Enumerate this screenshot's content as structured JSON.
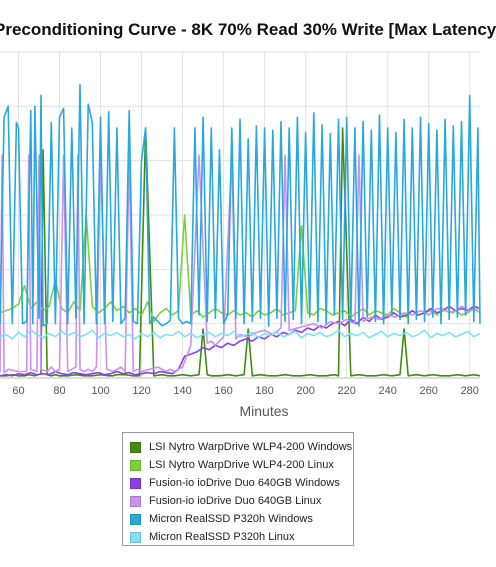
{
  "chart_data": {
    "type": "line",
    "title": "Preconditioning Curve - 8K 70% Read 30% Write [Max Latency",
    "xlabel": "Minutes",
    "ylabel": "",
    "x_ticks": [
      60,
      80,
      100,
      120,
      140,
      160,
      180,
      200,
      220,
      240,
      260,
      280
    ],
    "xlim": [
      51,
      285
    ],
    "ylim": [
      0,
      300
    ],
    "grid": true,
    "legend_position": "bottom",
    "series": [
      {
        "name": "LSI Nytro WarpDrive WLP4-200 Windows",
        "color": "#3f8c10",
        "x": [
          51,
          54,
          57,
          60,
          63,
          65,
          68,
          71,
          72,
          74,
          76,
          78,
          80,
          84,
          88,
          92,
          96,
          100,
          104,
          106,
          108,
          112,
          116,
          119,
          122,
          126,
          130,
          133,
          136,
          140,
          144,
          148,
          150,
          152,
          154,
          158,
          162,
          166,
          170,
          172,
          174,
          178,
          182,
          186,
          190,
          194,
          198,
          202,
          206,
          210,
          214,
          216,
          218,
          222,
          226,
          230,
          234,
          238,
          242,
          246,
          248,
          250,
          254,
          258,
          262,
          266,
          270,
          274,
          278,
          282,
          285
        ],
        "values": [
          2,
          2,
          3,
          2,
          2,
          3,
          2,
          4,
          210,
          3,
          2,
          3,
          2,
          2,
          3,
          2,
          2,
          3,
          2,
          2,
          3,
          3,
          2,
          2,
          230,
          2,
          3,
          2,
          2,
          3,
          2,
          3,
          45,
          3,
          2,
          2,
          3,
          2,
          3,
          45,
          2,
          3,
          2,
          2,
          3,
          2,
          2,
          3,
          2,
          2,
          3,
          2,
          230,
          2,
          3,
          2,
          2,
          3,
          2,
          3,
          45,
          2,
          3,
          2,
          3,
          2,
          2,
          3,
          2,
          3,
          2
        ]
      },
      {
        "name": "LSI Nytro WarpDrive WLP4-200 Linux",
        "color": "#7ad13a",
        "x": [
          51,
          54,
          57,
          60,
          63,
          66,
          69,
          72,
          75,
          78,
          81,
          84,
          87,
          90,
          93,
          96,
          99,
          102,
          105,
          108,
          111,
          114,
          117,
          120,
          123,
          126,
          129,
          132,
          135,
          138,
          141,
          144,
          147,
          150,
          153,
          156,
          159,
          162,
          165,
          168,
          171,
          174,
          177,
          180,
          183,
          186,
          189,
          192,
          195,
          198,
          201,
          204,
          207,
          210,
          213,
          216,
          219,
          222,
          225,
          228,
          231,
          234,
          237,
          240,
          243,
          246,
          249,
          252,
          255,
          258,
          261,
          264,
          267,
          270,
          273,
          276,
          279,
          282,
          285
        ],
        "values": [
          60,
          62,
          64,
          68,
          85,
          64,
          70,
          62,
          66,
          90,
          64,
          60,
          70,
          62,
          150,
          66,
          60,
          64,
          70,
          62,
          66,
          60,
          64,
          58,
          70,
          52,
          60,
          64,
          58,
          62,
          150,
          58,
          62,
          56,
          60,
          64,
          60,
          58,
          62,
          58,
          60,
          56,
          62,
          58,
          60,
          64,
          58,
          60,
          62,
          140,
          60,
          58,
          64,
          62,
          58,
          60,
          62,
          56,
          60,
          64,
          58,
          62,
          60,
          58,
          64,
          60,
          56,
          62,
          58,
          60,
          62,
          58,
          64,
          60,
          62,
          58,
          60,
          64,
          60
        ]
      },
      {
        "name": "Fusion-io ioDrive Duo 640GB Windows",
        "color": "#8a3fe0",
        "x": [
          51,
          54,
          57,
          60,
          63,
          66,
          69,
          72,
          75,
          78,
          81,
          84,
          87,
          90,
          93,
          96,
          99,
          102,
          105,
          108,
          111,
          114,
          117,
          120,
          123,
          126,
          129,
          132,
          135,
          138,
          141,
          144,
          147,
          150,
          153,
          156,
          159,
          162,
          165,
          168,
          171,
          174,
          177,
          180,
          183,
          186,
          189,
          192,
          195,
          198,
          201,
          204,
          207,
          210,
          213,
          216,
          219,
          222,
          225,
          228,
          231,
          234,
          237,
          240,
          243,
          246,
          249,
          252,
          255,
          258,
          261,
          264,
          267,
          270,
          273,
          276,
          279,
          282,
          285
        ],
        "values": [
          2,
          3,
          2,
          4,
          3,
          5,
          3,
          4,
          3,
          6,
          4,
          3,
          5,
          4,
          3,
          4,
          5,
          3,
          4,
          6,
          4,
          5,
          3,
          4,
          5,
          4,
          6,
          5,
          4,
          8,
          20,
          22,
          24,
          28,
          26,
          30,
          28,
          32,
          30,
          34,
          36,
          34,
          38,
          36,
          40,
          38,
          42,
          40,
          44,
          42,
          46,
          44,
          48,
          46,
          50,
          52,
          48,
          54,
          50,
          56,
          52,
          58,
          54,
          56,
          60,
          56,
          58,
          62,
          58,
          60,
          64,
          60,
          62,
          66,
          62,
          64,
          62,
          66,
          64
        ]
      },
      {
        "name": "Fusion-io ioDrive Duo 640GB Linux",
        "color": "#c891f2",
        "x": [
          51,
          52,
          53,
          55,
          60,
          64,
          65,
          66,
          69,
          70,
          71,
          74,
          76,
          78,
          80,
          82,
          84,
          86,
          88,
          89,
          90,
          92,
          94,
          96,
          98,
          100,
          103,
          106,
          108,
          110,
          112,
          114,
          116,
          118,
          120,
          124,
          128,
          132,
          134,
          136,
          140,
          144,
          148,
          152,
          154,
          156,
          160,
          164,
          166,
          168,
          172,
          176,
          180,
          184,
          188,
          190,
          192,
          196,
          200,
          204,
          208,
          212,
          216,
          220,
          224,
          226,
          228,
          232,
          236,
          240,
          244,
          248,
          252,
          256,
          260,
          264,
          268,
          272,
          276,
          280,
          285
        ],
        "values": [
          5,
          205,
          5,
          8,
          6,
          6,
          205,
          8,
          6,
          205,
          8,
          6,
          10,
          6,
          8,
          205,
          6,
          8,
          10,
          205,
          8,
          6,
          8,
          6,
          10,
          205,
          8,
          6,
          8,
          10,
          6,
          205,
          6,
          8,
          6,
          8,
          10,
          6,
          8,
          6,
          10,
          30,
          205,
          32,
          34,
          30,
          38,
          205,
          36,
          40,
          38,
          42,
          44,
          40,
          46,
          205,
          44,
          46,
          48,
          50,
          46,
          52,
          50,
          54,
          50,
          205,
          52,
          56,
          54,
          58,
          56,
          60,
          58,
          62,
          58,
          64,
          62,
          60,
          66,
          62,
          64
        ]
      },
      {
        "name": "Micron RealSSD P320h Windows",
        "color": "#28a8dc",
        "x": [
          51,
          53,
          55,
          57,
          59,
          60,
          62,
          64,
          66,
          67,
          68,
          70,
          71,
          72,
          74,
          76,
          78,
          80,
          82,
          84,
          86,
          88,
          90,
          92,
          94,
          96,
          98,
          100,
          102,
          104,
          106,
          108,
          110,
          112,
          114,
          116,
          118,
          120,
          122,
          124,
          126,
          128,
          130,
          132,
          134,
          136,
          138,
          140,
          142,
          144,
          146,
          148,
          150,
          152,
          154,
          156,
          158,
          160,
          162,
          164,
          166,
          168,
          170,
          172,
          174,
          176,
          178,
          180,
          182,
          184,
          186,
          188,
          190,
          192,
          194,
          196,
          198,
          200,
          202,
          204,
          206,
          208,
          210,
          212,
          214,
          216,
          218,
          220,
          222,
          224,
          226,
          228,
          230,
          232,
          234,
          236,
          238,
          240,
          242,
          244,
          246,
          248,
          250,
          252,
          254,
          256,
          258,
          260,
          262,
          264,
          266,
          268,
          270,
          272,
          274,
          276,
          278,
          280,
          282,
          284,
          285
        ],
        "values": [
          50,
          240,
          250,
          50,
          235,
          230,
          50,
          52,
          246,
          50,
          250,
          55,
          260,
          48,
          50,
          235,
          50,
          240,
          248,
          50,
          230,
          55,
          270,
          50,
          252,
          235,
          50,
          240,
          50,
          245,
          52,
          230,
          50,
          55,
          246,
          52,
          50,
          200,
          230,
          50,
          56,
          52,
          48,
          50,
          53,
          230,
          55,
          50,
          52,
          50,
          230,
          58,
          240,
          52,
          230,
          55,
          210,
          50,
          58,
          230,
          55,
          238,
          50,
          220,
          52,
          232,
          55,
          230,
          48,
          228,
          55,
          236,
          52,
          230,
          54,
          240,
          50,
          226,
          56,
          244,
          52,
          233,
          50,
          225,
          58,
          238,
          54,
          240,
          52,
          230,
          48,
          236,
          56,
          228,
          52,
          242,
          50,
          230,
          58,
          226,
          54,
          238,
          50,
          230,
          54,
          240,
          52,
          234,
          56,
          228,
          50,
          238,
          54,
          232,
          56,
          236,
          58,
          260,
          52,
          230,
          50
        ]
      },
      {
        "name": "Micron RealSSD P320h Linux",
        "color": "#7ee0fa",
        "x": [
          51,
          54,
          57,
          60,
          63,
          66,
          69,
          72,
          75,
          78,
          81,
          84,
          87,
          90,
          93,
          96,
          99,
          102,
          105,
          108,
          111,
          114,
          117,
          120,
          123,
          126,
          129,
          132,
          135,
          138,
          141,
          144,
          147,
          150,
          153,
          156,
          159,
          162,
          165,
          168,
          171,
          174,
          177,
          180,
          183,
          186,
          189,
          192,
          195,
          198,
          201,
          204,
          207,
          210,
          213,
          216,
          219,
          222,
          225,
          228,
          231,
          234,
          237,
          240,
          243,
          246,
          249,
          252,
          255,
          258,
          261,
          264,
          267,
          270,
          273,
          276,
          279,
          282,
          285
        ],
        "values": [
          38,
          40,
          36,
          42,
          38,
          44,
          40,
          37,
          41,
          38,
          43,
          39,
          42,
          38,
          40,
          44,
          37,
          41,
          39,
          42,
          38,
          40,
          36,
          41,
          38,
          42,
          37,
          40,
          39,
          43,
          38,
          41,
          37,
          40,
          42,
          38,
          41,
          39,
          43,
          38,
          40,
          42,
          37,
          41,
          39,
          42,
          38,
          40,
          43,
          37,
          41,
          39,
          42,
          38,
          40,
          44,
          38,
          41,
          39,
          42,
          37,
          40,
          43,
          38,
          41,
          39,
          42,
          38,
          40,
          44,
          37,
          41,
          39,
          42,
          38,
          40,
          43,
          38,
          41
        ]
      }
    ]
  }
}
